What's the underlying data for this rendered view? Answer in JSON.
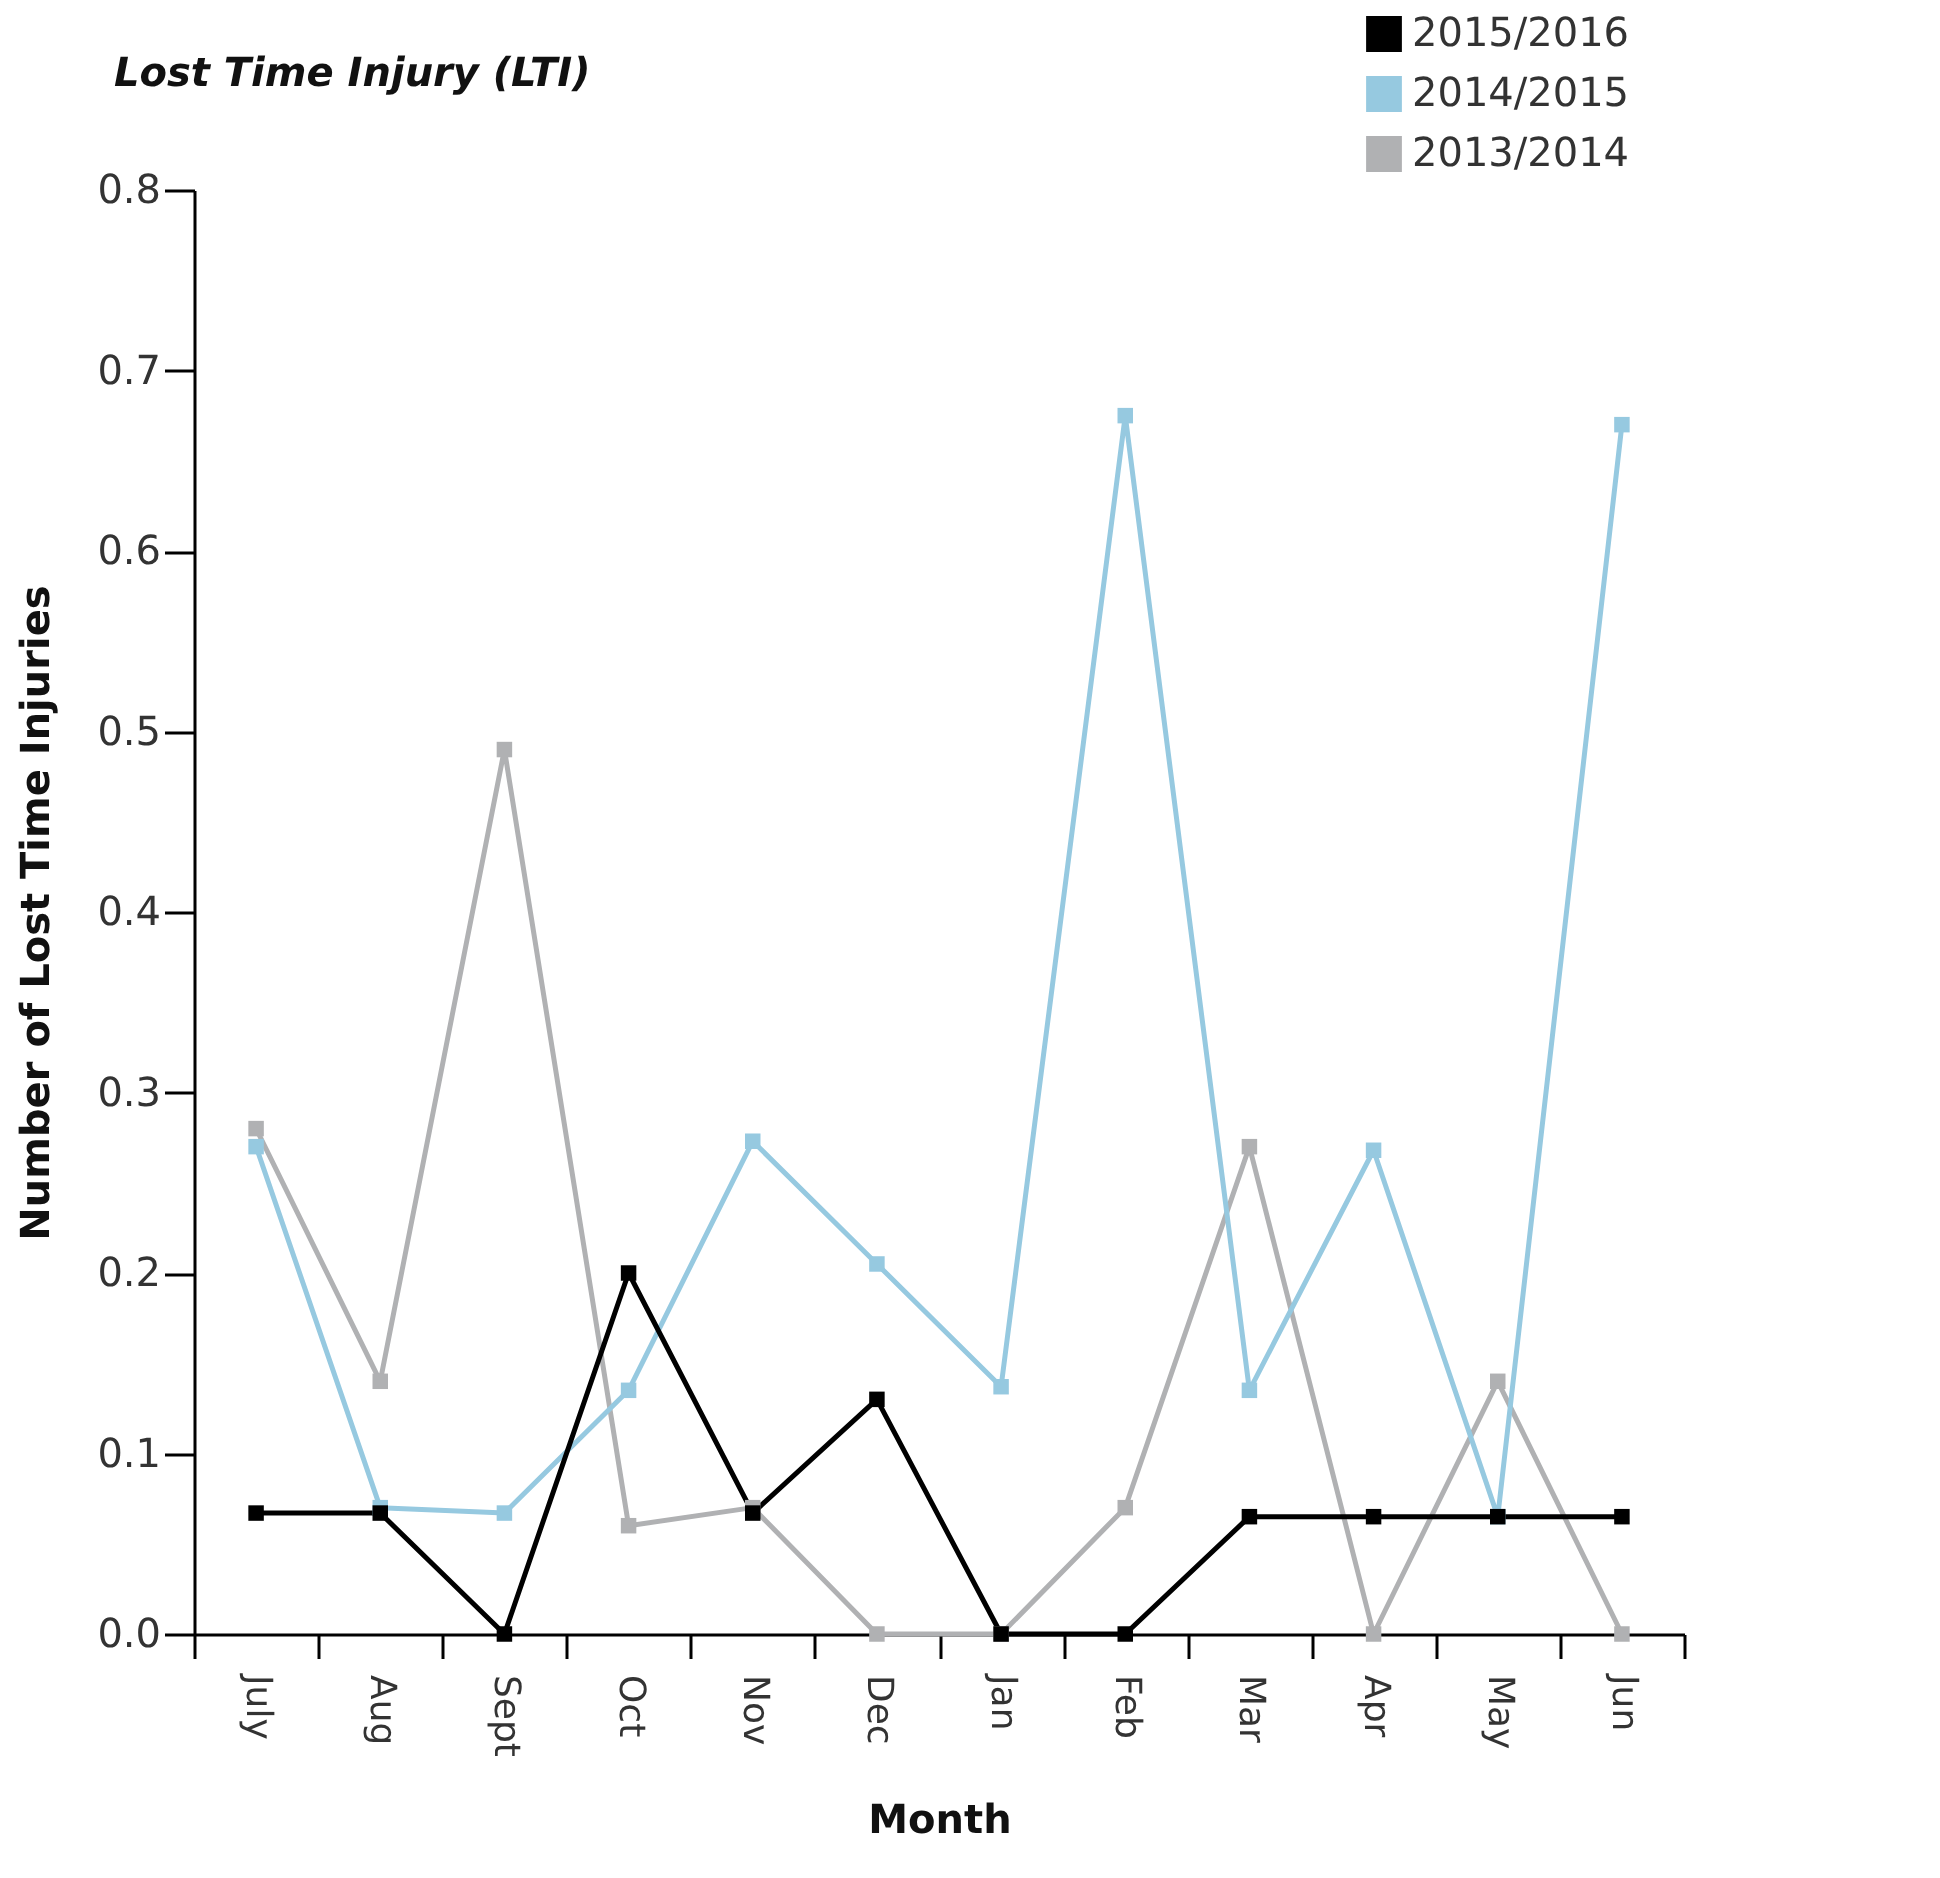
{
  "chart_data": {
    "type": "line",
    "title": "Lost Time Injury (LTI)",
    "xlabel": "Month",
    "ylabel": "Number of Lost Time Injuries",
    "categories": [
      "July",
      "Aug",
      "Sept",
      "Oct",
      "Nov",
      "Dec",
      "Jan",
      "Feb",
      "Mar",
      "Apr",
      "May",
      "Jun"
    ],
    "series": [
      {
        "name": "2015/2016",
        "color": "#000000",
        "values": [
          0.067,
          0.067,
          0,
          0.2,
          0.067,
          0.13,
          0,
          0,
          0.065,
          0.065,
          0.065,
          0.065
        ]
      },
      {
        "name": "2014/2015",
        "color": "#96c9e0",
        "values": [
          0.27,
          0.07,
          0.067,
          0.135,
          0.273,
          0.205,
          0.137,
          0.675,
          0.135,
          0.268,
          0.065,
          0.67
        ]
      },
      {
        "name": "2013/2014",
        "color": "#b0b1b3",
        "values": [
          0.28,
          0.14,
          0.49,
          0.06,
          0.07,
          0,
          0,
          0.07,
          0.27,
          0,
          0.14,
          0
        ]
      }
    ],
    "ylim": [
      0,
      0.8
    ],
    "yticks": [
      {
        "value": 0,
        "label": "0.0"
      },
      0.1,
      0.2,
      0.3,
      0.4,
      0.5,
      0.6,
      0.7,
      0.8
    ],
    "grid": false,
    "legend": "top right",
    "marker": "square",
    "line_style": "solid"
  }
}
